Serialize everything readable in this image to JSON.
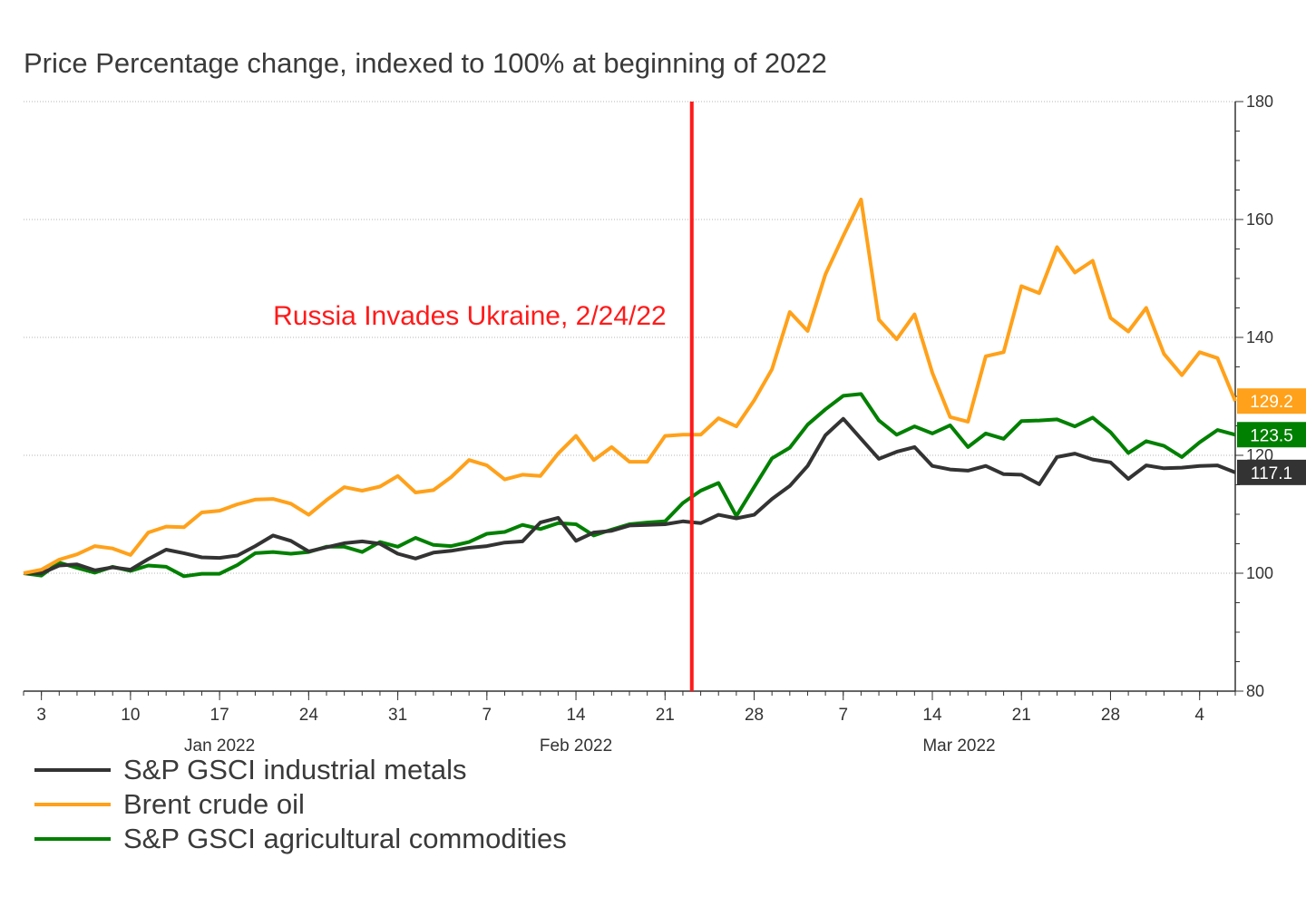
{
  "chart_data": {
    "type": "line",
    "title": "Price Percentage change, indexed to 100% at beginning of 2022",
    "ylim": [
      80,
      180
    ],
    "yticks": [
      "180",
      "160",
      "140",
      "120",
      "100",
      "80"
    ],
    "ytick_values": [
      180,
      160,
      140,
      120,
      100,
      80
    ],
    "x_tick_labels": [
      "3",
      "10",
      "17",
      "24",
      "31",
      "7",
      "14",
      "21",
      "28",
      "7",
      "14",
      "21",
      "28",
      "4"
    ],
    "x_tick_index": [
      1,
      6,
      11,
      16,
      21,
      26,
      31,
      36,
      41,
      46,
      51,
      56,
      61,
      66
    ],
    "month_labels": [
      "Jan 2022",
      "Feb 2022",
      "Mar 2022"
    ],
    "month_label_index": [
      11,
      31,
      52.5
    ],
    "grid": "horizontal-dotted",
    "legend_position": "bottom-left",
    "annotation": {
      "text": "Russia Invades Ukraine, 2/24/22",
      "x_index": 37.5,
      "color": "#ff1a1a"
    },
    "series": [
      {
        "name": "S&P GSCI industrial metals",
        "color": "#333333",
        "end_label": "117.1",
        "values": [
          100.0,
          100.0,
          101.3,
          101.5,
          100.5,
          101.0,
          100.6,
          102.4,
          104.0,
          103.4,
          102.7,
          102.6,
          103.0,
          104.6,
          106.4,
          105.5,
          103.7,
          104.4,
          105.1,
          105.4,
          105.0,
          103.3,
          102.5,
          103.5,
          103.8,
          104.3,
          104.6,
          105.2,
          105.4,
          108.6,
          109.4,
          105.5,
          106.9,
          107.2,
          108.1,
          108.2,
          108.3,
          108.8,
          108.5,
          109.9,
          109.3,
          109.9,
          112.6,
          114.8,
          118.2,
          123.4,
          126.2,
          122.8,
          119.4,
          120.6,
          121.4,
          118.2,
          117.6,
          117.4,
          118.2,
          116.8,
          116.7,
          115.1,
          119.7,
          120.3,
          119.3,
          118.8,
          116.0,
          118.3,
          117.8,
          117.9,
          118.2,
          118.3,
          117.1
        ]
      },
      {
        "name": "Brent crude oil",
        "color": "#ffa11a",
        "end_label": "129.2",
        "values": [
          100.0,
          100.6,
          102.3,
          103.2,
          104.6,
          104.2,
          103.1,
          106.9,
          107.9,
          107.8,
          110.3,
          110.6,
          111.7,
          112.5,
          112.6,
          111.8,
          109.9,
          112.4,
          114.6,
          114.0,
          114.7,
          116.5,
          113.7,
          114.1,
          116.3,
          119.2,
          118.3,
          115.9,
          116.7,
          116.5,
          120.3,
          123.3,
          119.2,
          121.4,
          118.9,
          118.9,
          123.3,
          123.5,
          123.5,
          126.3,
          124.9,
          129.3,
          134.6,
          144.3,
          141.1,
          150.7,
          157.2,
          163.4,
          143.0,
          139.7,
          143.9,
          134.0,
          126.5,
          125.7,
          136.8,
          137.5,
          148.7,
          147.5,
          155.3,
          151.0,
          153.0,
          143.3,
          141.0,
          145.0,
          137.2,
          133.6,
          137.5,
          136.5,
          129.2
        ]
      },
      {
        "name": "S&P GSCI agricultural commodities",
        "color": "#008000",
        "end_label": "123.5",
        "values": [
          100.0,
          99.6,
          101.8,
          100.9,
          100.1,
          101.1,
          100.4,
          101.3,
          101.1,
          99.5,
          99.9,
          99.9,
          101.4,
          103.4,
          103.6,
          103.3,
          103.6,
          104.5,
          104.5,
          103.6,
          105.3,
          104.5,
          106.0,
          104.8,
          104.6,
          105.3,
          106.7,
          107.0,
          108.2,
          107.5,
          108.5,
          108.3,
          106.4,
          107.4,
          108.3,
          108.6,
          108.8,
          111.9,
          114.0,
          115.3,
          109.7,
          114.6,
          119.5,
          121.3,
          125.2,
          127.8,
          130.1,
          130.4,
          125.9,
          123.5,
          124.9,
          123.7,
          125.1,
          121.4,
          123.7,
          122.8,
          125.8,
          125.9,
          126.1,
          124.9,
          126.4,
          123.9,
          120.4,
          122.4,
          121.6,
          119.7,
          122.2,
          124.3,
          123.5
        ]
      }
    ]
  }
}
